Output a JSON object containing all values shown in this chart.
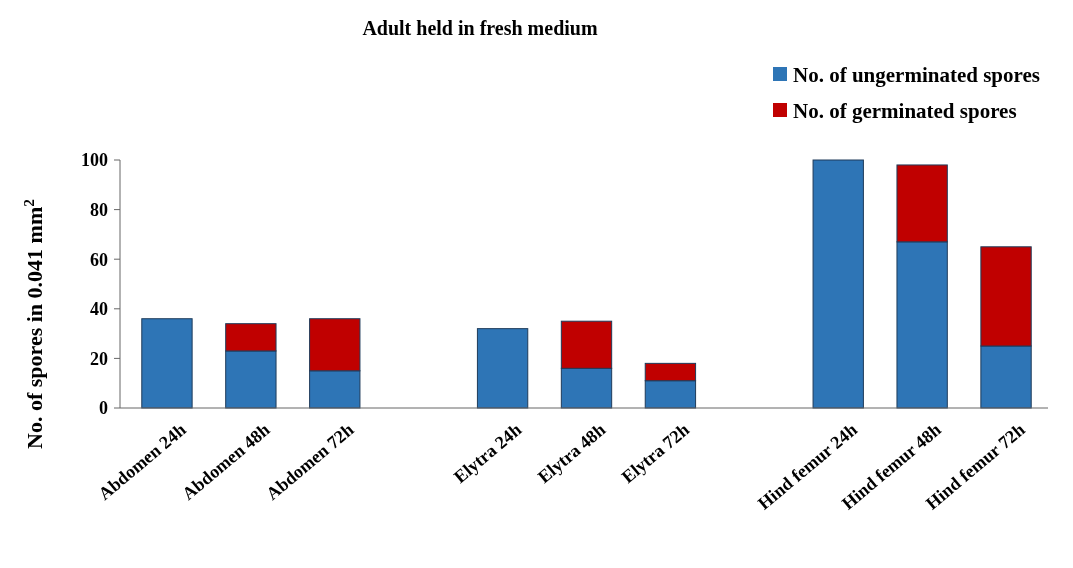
{
  "chart_data": {
    "type": "bar",
    "title": "Adult held in fresh medium",
    "ylabel": "No. of spores in 0.041  mm$^{2}$",
    "categories": [
      "Abdomen 24h",
      "Abdomen 48h",
      "Abdomen 72h",
      null,
      "Elytra 24h",
      "Elytra 48h",
      "Elytra 72h",
      null,
      "Hind femur 24h",
      "Hind femur 48h",
      "Hind femur 72h"
    ],
    "stacked": true,
    "series": [
      {
        "name": "No. of ungerminated spores",
        "color": "#2e75b6",
        "values": [
          36,
          23,
          15,
          null,
          32,
          16,
          11,
          null,
          100,
          67,
          25
        ]
      },
      {
        "name": "No. of germinated spores",
        "color": "#c00000",
        "values": [
          null,
          11,
          21,
          null,
          null,
          19,
          7,
          null,
          null,
          31,
          40
        ]
      }
    ],
    "ylim": [
      0,
      100
    ],
    "yticks": [
      0,
      20,
      40,
      60,
      80,
      100
    ],
    "grid": false,
    "legend": "top right"
  }
}
